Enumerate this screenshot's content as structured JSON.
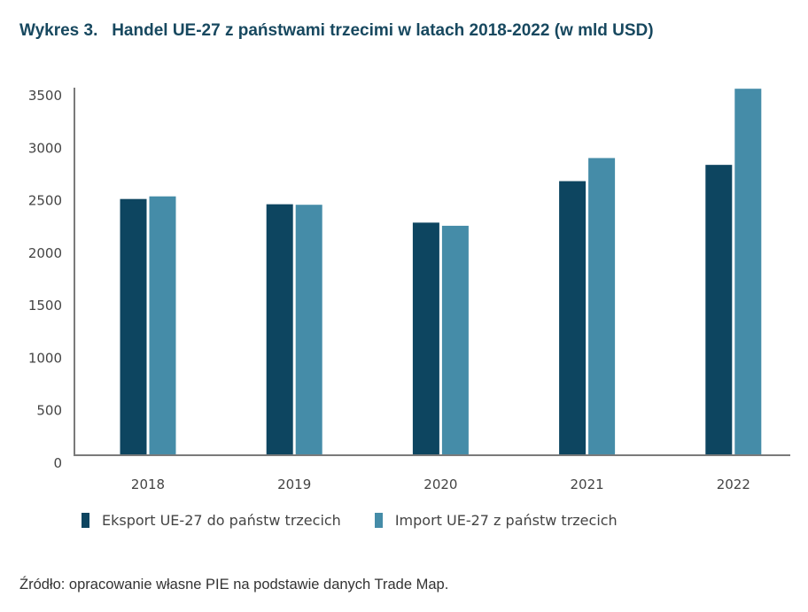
{
  "header": {
    "title": "Wykres 3.   Handel UE-27 z państwami trzecimi w latach 2018-2022 (w mld USD)"
  },
  "footer": {
    "source": "Źródło: opracowanie własne PIE na podstawie danych Trade Map."
  },
  "colors": {
    "title": "#17485f",
    "export": "#0d4560",
    "import": "#458ca8",
    "axis": "#7a7a7a"
  },
  "chart_data": {
    "type": "bar",
    "title": "Wykres 3. Handel UE-27 z państwami trzecimi w latach 2018-2022 (w mld USD)",
    "xlabel": "",
    "ylabel": "",
    "categories": [
      "2018",
      "2019",
      "2020",
      "2021",
      "2022"
    ],
    "series": [
      {
        "name": "Eksport UE-27 do państw trzecich",
        "values": [
          2440,
          2390,
          2215,
          2610,
          2765
        ]
      },
      {
        "name": "Import UE-27 z państw trzecich",
        "values": [
          2465,
          2385,
          2185,
          2830,
          3490
        ]
      }
    ],
    "ylim": [
      0,
      3500
    ],
    "yticks": [
      0,
      500,
      1000,
      1500,
      2000,
      2500,
      3000,
      3500
    ],
    "ytick_labels": [
      "0",
      "500",
      "1000",
      "1500",
      "2000",
      "2500",
      "3000",
      "3500"
    ],
    "grid": false,
    "legend_position": "bottom-left"
  }
}
